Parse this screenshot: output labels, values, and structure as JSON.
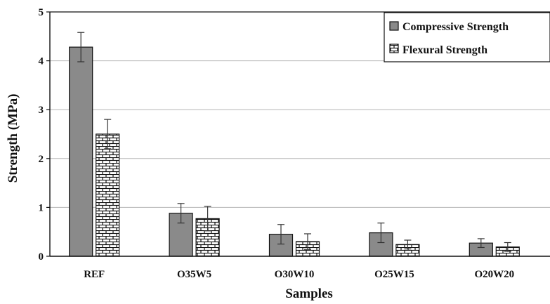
{
  "chart_data": {
    "type": "bar",
    "xlabel": "Samples",
    "ylabel": "Strength (MPa)",
    "ylim": [
      0,
      5
    ],
    "yticks": [
      "0",
      "1",
      "2",
      "3",
      "4",
      "5"
    ],
    "categories": [
      "REF",
      "O35W5",
      "O30W10",
      "O25W15",
      "O20W20"
    ],
    "series": [
      {
        "name": "Compressive Strength",
        "values": [
          4.28,
          0.88,
          0.45,
          0.48,
          0.27
        ],
        "errors": [
          0.3,
          0.2,
          0.2,
          0.2,
          0.09
        ],
        "pattern": "solid",
        "color": "#8a8a8a"
      },
      {
        "name": "Flexural Strength",
        "values": [
          2.5,
          0.77,
          0.3,
          0.24,
          0.19
        ],
        "errors": [
          0.3,
          0.25,
          0.16,
          0.09,
          0.09
        ],
        "pattern": "brick",
        "color": "#ffffff"
      }
    ],
    "grid": true,
    "legend_position": "top-right"
  }
}
